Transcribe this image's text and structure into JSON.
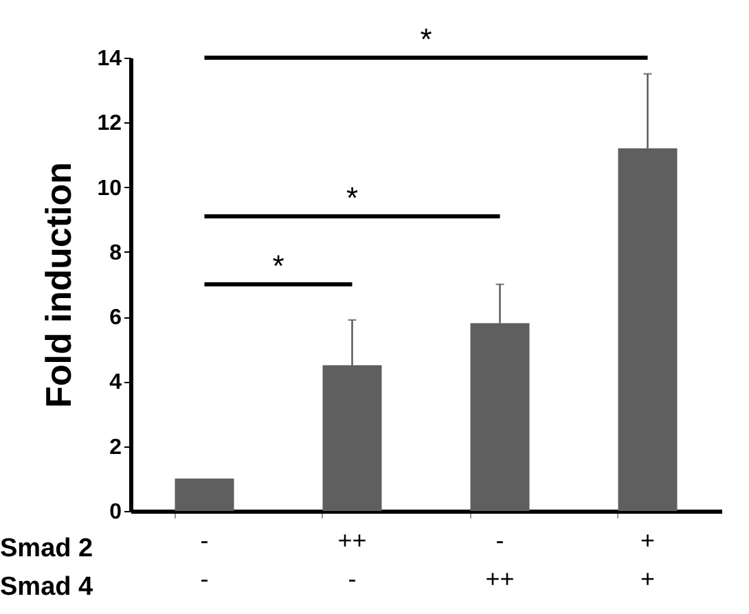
{
  "chart_data": {
    "type": "bar",
    "ylabel": "Fold induction",
    "categories": [
      "-\n-",
      "++\n-",
      "-\n++",
      "+\n+"
    ],
    "values": [
      1.0,
      4.5,
      5.8,
      11.2
    ],
    "color": "#5f5f5f",
    "errors": [
      null,
      [
        4.5,
        5.9
      ],
      [
        5.8,
        7.0
      ],
      [
        11.2,
        13.5
      ]
    ],
    "ylim": [
      0,
      14
    ],
    "yticks": [
      0,
      2,
      4,
      6,
      8,
      10,
      12,
      14
    ],
    "grid": false,
    "annotations": [
      "*",
      "*",
      "*",
      "Smad 2",
      "Smad 4"
    ]
  }
}
